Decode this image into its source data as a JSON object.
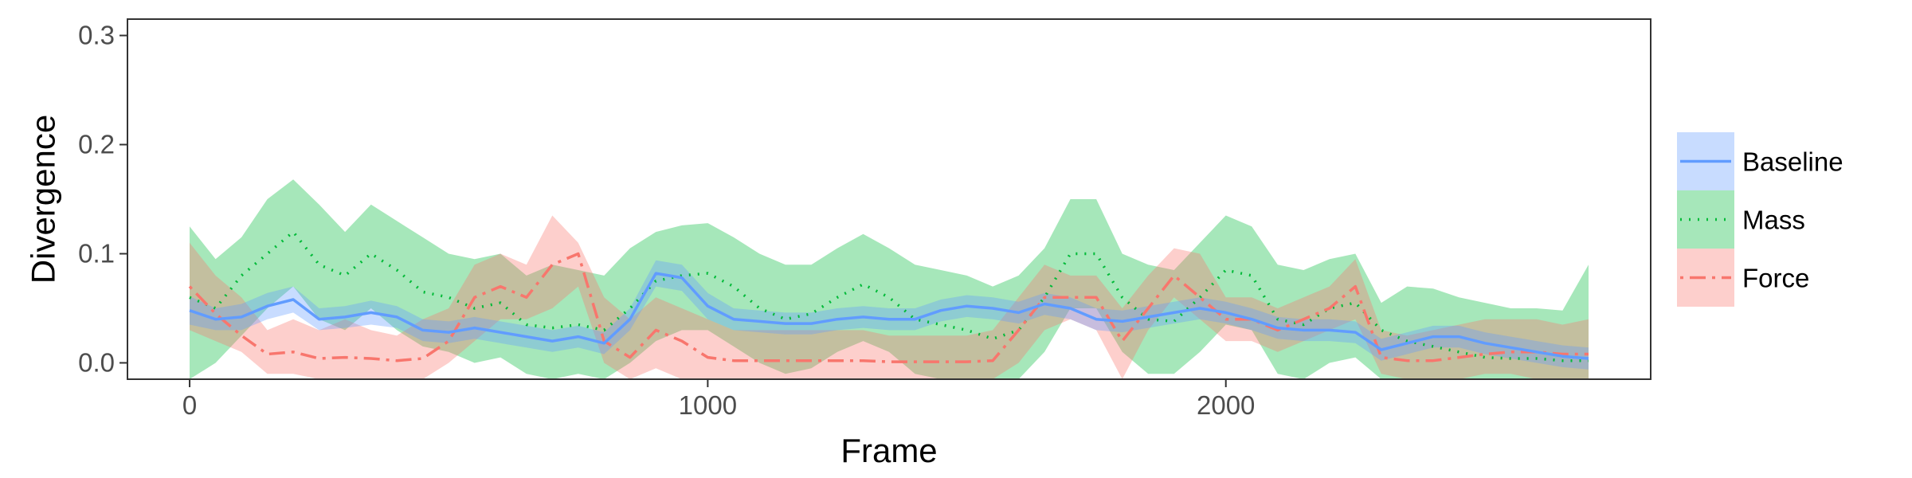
{
  "chart_data": {
    "type": "line",
    "xlabel": "Frame",
    "ylabel": "Divergence",
    "xlim": [
      -120,
      2820
    ],
    "ylim": [
      -0.015,
      0.315
    ],
    "xticks": [
      0,
      1000,
      2000
    ],
    "xtick_labels": [
      "0",
      "1000",
      "2000"
    ],
    "yticks": [
      0.0,
      0.1,
      0.2,
      0.3
    ],
    "ytick_labels": [
      "0.0",
      "0.1",
      "0.2",
      "0.3"
    ],
    "grid": false,
    "legend_position": "right",
    "x": [
      0,
      50,
      100,
      150,
      200,
      250,
      300,
      350,
      400,
      450,
      500,
      550,
      600,
      650,
      700,
      750,
      800,
      850,
      900,
      950,
      1000,
      1050,
      1100,
      1150,
      1200,
      1250,
      1300,
      1350,
      1400,
      1450,
      1500,
      1550,
      1600,
      1650,
      1700,
      1750,
      1800,
      1850,
      1900,
      1950,
      2000,
      2050,
      2100,
      2150,
      2200,
      2250,
      2300,
      2350,
      2400,
      2450,
      2500,
      2550,
      2600,
      2650,
      2700
    ],
    "series": [
      {
        "name": "Baseline",
        "color": "#619CFF",
        "line_style": "solid",
        "values": [
          0.048,
          0.04,
          0.042,
          0.052,
          0.058,
          0.04,
          0.042,
          0.046,
          0.042,
          0.03,
          0.028,
          0.032,
          0.028,
          0.024,
          0.02,
          0.024,
          0.018,
          0.04,
          0.082,
          0.078,
          0.052,
          0.04,
          0.038,
          0.036,
          0.036,
          0.04,
          0.042,
          0.04,
          0.04,
          0.048,
          0.052,
          0.05,
          0.046,
          0.054,
          0.05,
          0.04,
          0.038,
          0.042,
          0.046,
          0.05,
          0.046,
          0.04,
          0.032,
          0.03,
          0.03,
          0.028,
          0.012,
          0.018,
          0.024,
          0.024,
          0.018,
          0.014,
          0.01,
          0.006,
          0.004
        ],
        "lower": [
          0.035,
          0.03,
          0.03,
          0.04,
          0.046,
          0.03,
          0.032,
          0.035,
          0.032,
          0.02,
          0.018,
          0.022,
          0.018,
          0.014,
          0.01,
          0.014,
          0.008,
          0.03,
          0.07,
          0.066,
          0.04,
          0.03,
          0.028,
          0.026,
          0.026,
          0.03,
          0.032,
          0.03,
          0.03,
          0.038,
          0.042,
          0.04,
          0.036,
          0.044,
          0.04,
          0.03,
          0.028,
          0.032,
          0.036,
          0.04,
          0.036,
          0.03,
          0.022,
          0.02,
          0.02,
          0.018,
          0.002,
          0.008,
          0.014,
          0.014,
          0.008,
          0.004,
          0.0,
          -0.004,
          -0.006
        ],
        "upper": [
          0.061,
          0.05,
          0.054,
          0.064,
          0.07,
          0.05,
          0.052,
          0.057,
          0.052,
          0.04,
          0.038,
          0.042,
          0.038,
          0.034,
          0.03,
          0.034,
          0.028,
          0.05,
          0.094,
          0.09,
          0.064,
          0.05,
          0.048,
          0.046,
          0.046,
          0.05,
          0.052,
          0.05,
          0.05,
          0.058,
          0.062,
          0.06,
          0.056,
          0.064,
          0.06,
          0.05,
          0.048,
          0.052,
          0.056,
          0.06,
          0.056,
          0.05,
          0.042,
          0.04,
          0.04,
          0.038,
          0.022,
          0.028,
          0.034,
          0.034,
          0.028,
          0.024,
          0.02,
          0.016,
          0.014
        ]
      },
      {
        "name": "Mass",
        "color": "#00BA38",
        "line_style": "dotted",
        "values": [
          0.06,
          0.05,
          0.08,
          0.1,
          0.12,
          0.09,
          0.08,
          0.1,
          0.085,
          0.065,
          0.06,
          0.05,
          0.055,
          0.035,
          0.032,
          0.035,
          0.03,
          0.05,
          0.075,
          0.08,
          0.082,
          0.07,
          0.05,
          0.04,
          0.045,
          0.06,
          0.072,
          0.06,
          0.04,
          0.035,
          0.03,
          0.022,
          0.03,
          0.06,
          0.1,
          0.1,
          0.06,
          0.04,
          0.038,
          0.06,
          0.085,
          0.08,
          0.04,
          0.035,
          0.05,
          0.055,
          0.03,
          0.02,
          0.015,
          0.01,
          0.005,
          0.004,
          0.004,
          0.002,
          0.002
        ],
        "lower": [
          -0.015,
          0.0,
          0.025,
          0.05,
          0.07,
          0.04,
          0.03,
          0.05,
          0.03,
          0.015,
          0.01,
          0.0,
          0.005,
          -0.01,
          -0.015,
          -0.01,
          -0.015,
          0.0,
          0.02,
          0.03,
          0.03,
          0.015,
          0.0,
          -0.01,
          -0.005,
          0.01,
          0.02,
          0.01,
          -0.01,
          -0.015,
          -0.015,
          -0.015,
          -0.015,
          0.01,
          0.05,
          0.05,
          0.01,
          -0.01,
          -0.01,
          0.01,
          0.035,
          0.03,
          -0.01,
          -0.015,
          0.0,
          0.005,
          -0.015,
          -0.015,
          -0.015,
          -0.015,
          -0.015,
          -0.015,
          -0.015,
          -0.015,
          -0.015
        ],
        "upper": [
          0.125,
          0.095,
          0.115,
          0.15,
          0.168,
          0.145,
          0.12,
          0.145,
          0.13,
          0.115,
          0.1,
          0.095,
          0.1,
          0.08,
          0.09,
          0.085,
          0.08,
          0.105,
          0.12,
          0.126,
          0.128,
          0.115,
          0.1,
          0.09,
          0.09,
          0.105,
          0.118,
          0.105,
          0.09,
          0.085,
          0.08,
          0.07,
          0.08,
          0.105,
          0.15,
          0.15,
          0.1,
          0.09,
          0.085,
          0.11,
          0.135,
          0.125,
          0.09,
          0.085,
          0.095,
          0.1,
          0.055,
          0.07,
          0.068,
          0.06,
          0.055,
          0.05,
          0.05,
          0.048,
          0.09
        ]
      },
      {
        "name": "Force",
        "color": "#F8766D",
        "line_style": "dotdash",
        "values": [
          0.07,
          0.045,
          0.025,
          0.008,
          0.01,
          0.004,
          0.005,
          0.004,
          0.002,
          0.004,
          0.02,
          0.06,
          0.07,
          0.06,
          0.09,
          0.1,
          0.02,
          0.005,
          0.03,
          0.02,
          0.005,
          0.002,
          0.002,
          0.002,
          0.002,
          0.002,
          0.002,
          0.001,
          0.001,
          0.001,
          0.001,
          0.002,
          0.03,
          0.06,
          0.06,
          0.06,
          0.02,
          0.05,
          0.08,
          0.06,
          0.04,
          0.04,
          0.03,
          0.04,
          0.05,
          0.07,
          0.005,
          0.002,
          0.002,
          0.005,
          0.008,
          0.01,
          0.01,
          0.008,
          0.008
        ],
        "lower": [
          0.03,
          0.02,
          0.01,
          -0.01,
          -0.01,
          -0.015,
          -0.015,
          -0.015,
          -0.015,
          -0.015,
          0.0,
          0.02,
          0.04,
          0.04,
          0.05,
          0.07,
          0.0,
          -0.015,
          -0.005,
          -0.015,
          -0.015,
          -0.015,
          -0.015,
          -0.015,
          -0.015,
          -0.015,
          -0.015,
          -0.015,
          -0.015,
          -0.015,
          -0.015,
          -0.015,
          0.0,
          0.03,
          0.04,
          0.03,
          -0.015,
          0.03,
          0.06,
          0.04,
          0.02,
          0.02,
          0.01,
          0.02,
          0.03,
          0.04,
          -0.01,
          -0.015,
          -0.015,
          -0.015,
          -0.01,
          -0.01,
          -0.015,
          -0.015,
          -0.015
        ],
        "upper": [
          0.11,
          0.08,
          0.06,
          0.03,
          0.04,
          0.03,
          0.04,
          0.03,
          0.025,
          0.04,
          0.05,
          0.09,
          0.1,
          0.09,
          0.135,
          0.11,
          0.06,
          0.04,
          0.06,
          0.05,
          0.04,
          0.03,
          0.03,
          0.03,
          0.03,
          0.03,
          0.03,
          0.025,
          0.025,
          0.025,
          0.025,
          0.03,
          0.06,
          0.09,
          0.08,
          0.08,
          0.05,
          0.08,
          0.105,
          0.1,
          0.06,
          0.06,
          0.05,
          0.06,
          0.07,
          0.095,
          0.03,
          0.025,
          0.03,
          0.035,
          0.04,
          0.04,
          0.04,
          0.035,
          0.04
        ]
      }
    ]
  }
}
